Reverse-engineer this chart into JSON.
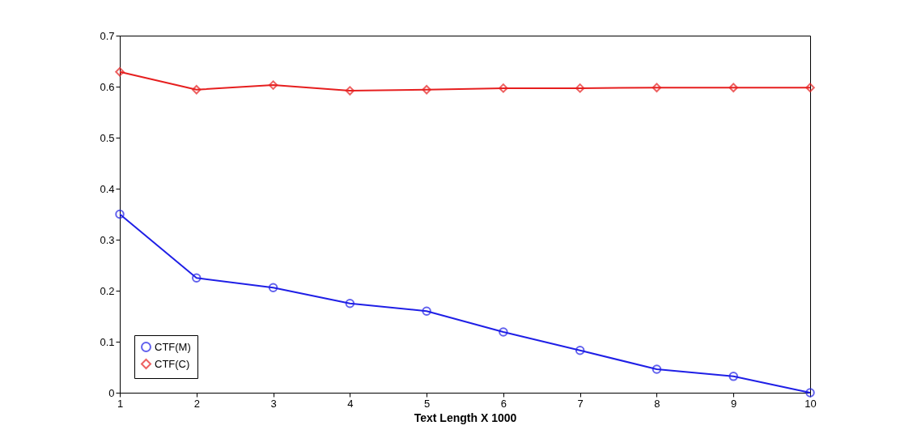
{
  "chart_data": {
    "type": "line",
    "xlabel": "Text Length X 1000",
    "x": [
      1,
      2,
      3,
      4,
      5,
      6,
      7,
      8,
      9,
      10
    ],
    "series": [
      {
        "name": "CTF(M)",
        "color": "#1f1fe6",
        "marker": "circle",
        "values": [
          0.35,
          0.225,
          0.206,
          0.175,
          0.16,
          0.119,
          0.083,
          0.046,
          0.032,
          0
        ]
      },
      {
        "name": "CTF(C)",
        "color": "#e61f1f",
        "marker": "diamond",
        "values": [
          0.629,
          0.594,
          0.603,
          0.592,
          0.594,
          0.597,
          0.597,
          0.598,
          0.598,
          0.598
        ]
      }
    ],
    "xlim": [
      1,
      10
    ],
    "xticks": [
      1,
      2,
      3,
      4,
      5,
      6,
      7,
      8,
      9,
      10
    ],
    "ylim": [
      0,
      0.7
    ],
    "yticks": [
      0,
      0.1,
      0.2,
      0.3,
      0.4,
      0.5,
      0.6,
      0.7
    ],
    "grid": false,
    "legend": "bottom left",
    "line_style": "solid"
  }
}
